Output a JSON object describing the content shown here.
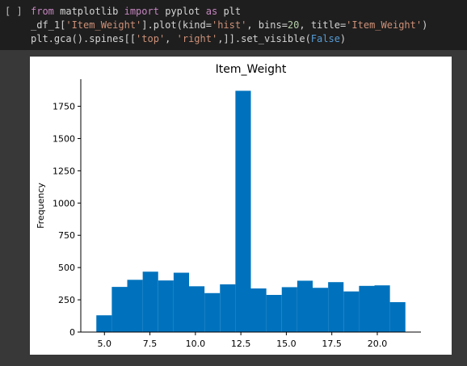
{
  "cell": {
    "run_indicator": "[ ]",
    "code": {
      "line1": {
        "kw_from": "from",
        "module": " matplotlib ",
        "kw_import": "import",
        "name": " pyplot ",
        "kw_as": "as",
        "alias": " plt"
      },
      "line2": {
        "prefix": "_df_1[",
        "col": "'Item_Weight'",
        "mid1": "].plot(kind=",
        "kind": "'hist'",
        "mid2": ", bins=",
        "bins": "20",
        "mid3": ", title=",
        "title": "'Item_Weight'",
        "suffix": ")"
      },
      "line3": {
        "prefix": "plt.gca().spines[[",
        "top": "'top'",
        "sep": ", ",
        "right": "'right'",
        "mid": ",]].set_visible(",
        "val": "False",
        "suffix": ")"
      }
    }
  },
  "colors": {
    "bar": "#0072bd"
  },
  "chart_data": {
    "type": "bar",
    "title": "Item_Weight",
    "xlabel": "",
    "ylabel": "Frequency",
    "bin_edges": [
      4.555,
      5.4045,
      6.254,
      7.1035,
      7.953,
      8.8025,
      9.652,
      10.5015,
      11.351,
      12.2005,
      13.05,
      13.8995,
      14.749,
      15.5985,
      16.448,
      17.2975,
      18.147,
      18.9965,
      19.846,
      20.6955,
      21.545
    ],
    "values": [
      130,
      350,
      405,
      468,
      400,
      460,
      355,
      302,
      370,
      1870,
      338,
      288,
      348,
      398,
      343,
      387,
      315,
      358,
      362,
      232
    ],
    "xlim": [
      3.7,
      22.4
    ],
    "ylim": [
      0,
      1960
    ],
    "xticks": [
      5.0,
      7.5,
      10.0,
      12.5,
      15.0,
      17.5,
      20.0
    ],
    "xtick_labels": [
      "5.0",
      "7.5",
      "10.0",
      "12.5",
      "15.0",
      "17.5",
      "20.0"
    ],
    "yticks": [
      0,
      250,
      500,
      750,
      1000,
      1250,
      1500,
      1750
    ],
    "ytick_labels": [
      "0",
      "250",
      "500",
      "750",
      "1000",
      "1250",
      "1500",
      "1750"
    ],
    "spines_visible": [
      "left",
      "bottom"
    ],
    "grid": false,
    "legend": "none"
  }
}
